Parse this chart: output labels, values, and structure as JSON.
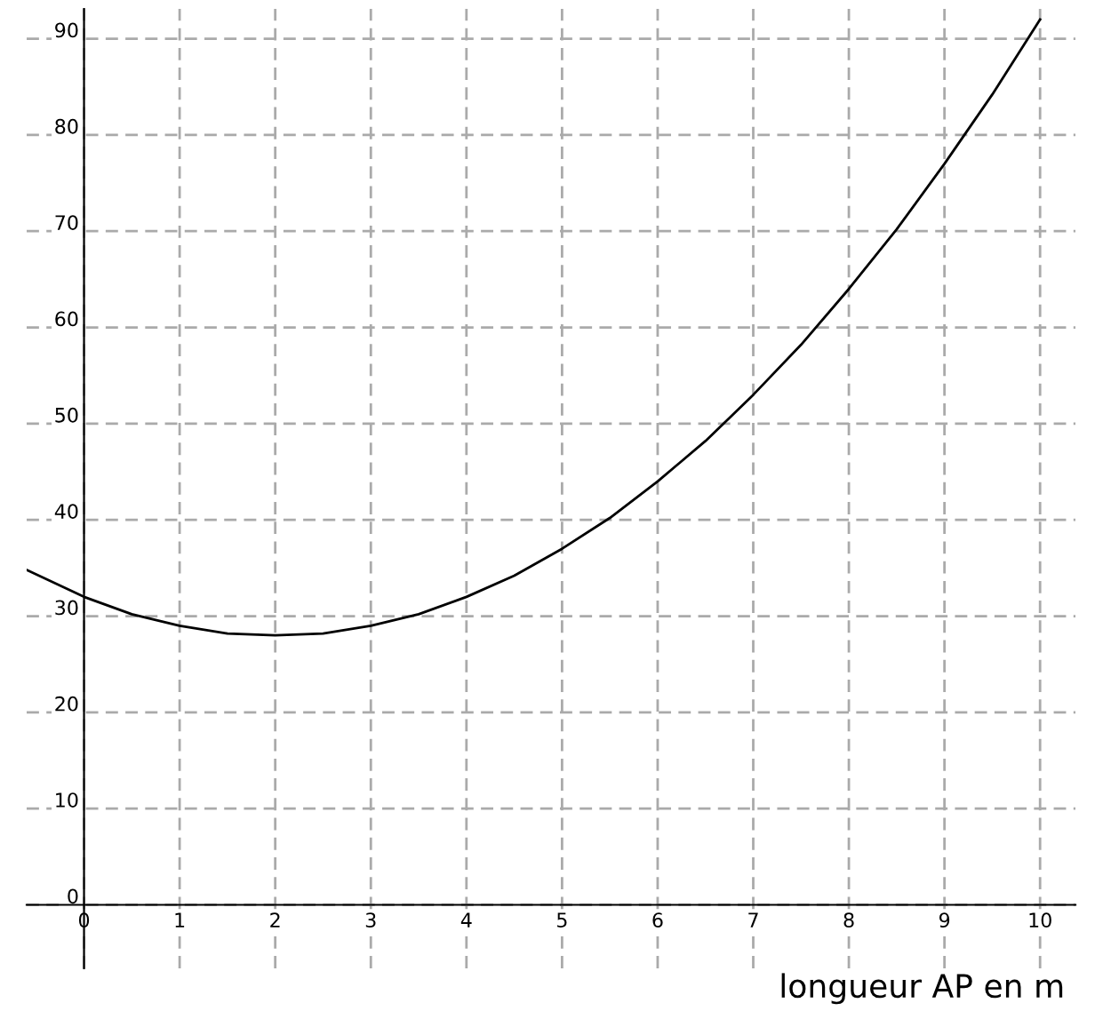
{
  "chart_data": {
    "type": "line",
    "xlabel": "longueur AP en m",
    "x": [
      -0.6,
      0,
      0.5,
      1,
      1.5,
      2,
      2.5,
      3,
      3.5,
      4,
      4.5,
      5,
      5.5,
      6,
      6.5,
      7,
      7.5,
      8,
      8.5,
      9,
      9.5,
      10
    ],
    "series": [
      {
        "color": "#000000",
        "values": [
          34.8,
          32,
          30.2,
          29,
          28.2,
          28,
          28.2,
          29,
          30.2,
          32,
          34.2,
          37,
          40.2,
          44,
          48.2,
          53,
          58.2,
          64,
          70.2,
          77,
          84.2,
          92
        ]
      }
    ],
    "xlim": [
      -0.6,
      10.37
    ],
    "ylim": [
      -6.6,
      93.1
    ],
    "xticks": [
      0,
      1,
      2,
      3,
      4,
      5,
      6,
      7,
      8,
      9,
      10
    ],
    "yticks": [
      0,
      10,
      20,
      30,
      40,
      50,
      60,
      70,
      80,
      90
    ],
    "grid": true,
    "legend": false,
    "marker": "none",
    "line_style": "solid"
  }
}
